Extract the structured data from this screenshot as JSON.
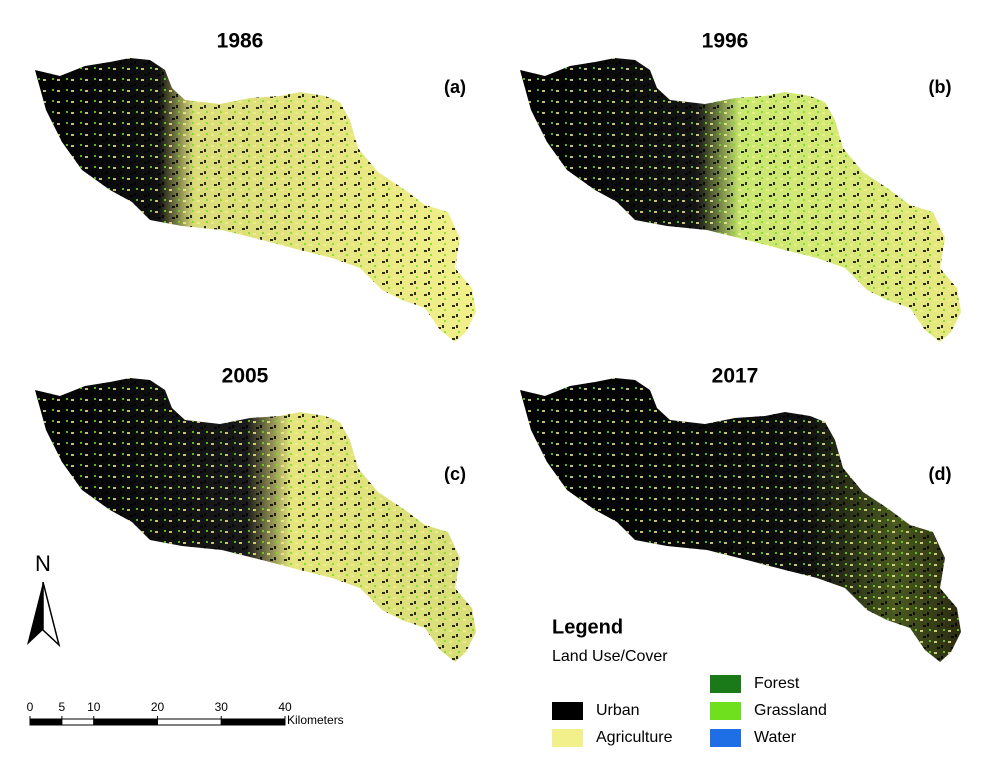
{
  "panels": [
    {
      "year": "1986",
      "label": "(a)"
    },
    {
      "year": "1996",
      "label": "(b)"
    },
    {
      "year": "2005",
      "label": "(c)"
    },
    {
      "year": "2017",
      "label": "(d)"
    }
  ],
  "north_arrow": {
    "label": "N"
  },
  "scale_bar": {
    "ticks": [
      0,
      5,
      10,
      20,
      30,
      40
    ],
    "unit": "Kilometers"
  },
  "legend": {
    "title": "Legend",
    "subtitle": "Land Use/Cover",
    "items": [
      {
        "name": "Urban",
        "color": "#000000"
      },
      {
        "name": "Agriculture",
        "color": "#f2f08a"
      },
      {
        "name": "Forest",
        "color": "#1a7a1a"
      },
      {
        "name": "Grassland",
        "color": "#6fe01e"
      },
      {
        "name": "Water",
        "color": "#1e6fe6"
      }
    ]
  }
}
